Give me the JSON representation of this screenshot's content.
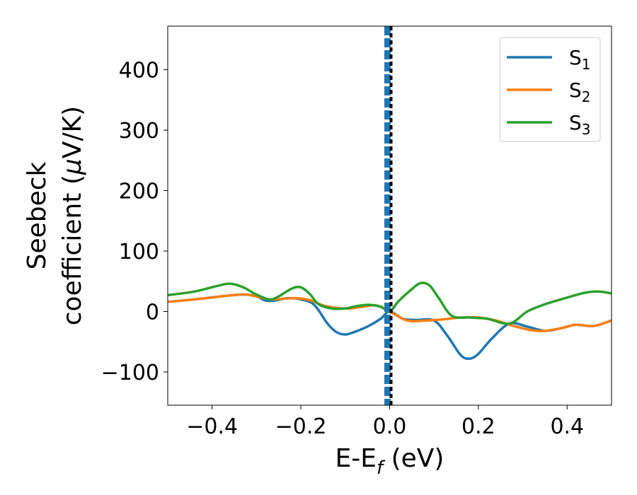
{
  "chart_data": {
    "type": "line",
    "xlabel": {
      "main": "E-E",
      "sub": "f",
      "unit": " (eV)"
    },
    "ylabel": {
      "line1": "Seebeck",
      "line2": "coefficient  (",
      "mu": "μ",
      "line2_end": "V/K)"
    },
    "xlim": [
      -0.5,
      0.5
    ],
    "ylim": [
      -155,
      472
    ],
    "x_ticks": [
      -0.4,
      -0.2,
      0.0,
      0.2,
      0.4
    ],
    "x_tick_labels": [
      "−0.4",
      "−0.2",
      "0.0",
      "0.2",
      "0.4"
    ],
    "y_ticks": [
      -100,
      0,
      100,
      200,
      300,
      400
    ],
    "y_tick_labels": [
      "−100",
      "0",
      "100",
      "200",
      "300",
      "400"
    ],
    "grid": false,
    "legend_position": "top-right",
    "fermi_marker": {
      "x": 0.0,
      "colors": [
        "#1f77b4",
        "#000000"
      ]
    },
    "series": [
      {
        "name": "S",
        "sub": "1",
        "color": "#1f77b4",
        "x": [
          -0.5,
          -0.44,
          -0.38,
          -0.33,
          -0.3,
          -0.28,
          -0.26,
          -0.23,
          -0.2,
          -0.17,
          -0.14,
          -0.12,
          -0.1,
          -0.08,
          -0.05,
          -0.02,
          0.0,
          0.03,
          0.06,
          0.1,
          0.13,
          0.16,
          0.18,
          0.2,
          0.23,
          0.27,
          0.31,
          0.35,
          0.39,
          0.42,
          0.46,
          0.5
        ],
        "y": [
          16,
          20,
          25,
          28,
          25,
          18,
          18,
          22,
          20,
          11,
          -20,
          -34,
          -38,
          -34,
          -25,
          -12,
          0,
          -12,
          -14,
          -15,
          -40,
          -72,
          -78,
          -70,
          -45,
          -20,
          -25,
          -32,
          -27,
          -22,
          -24,
          -15
        ]
      },
      {
        "name": "S",
        "sub": "2",
        "color": "#ff7f0e",
        "x": [
          -0.5,
          -0.44,
          -0.38,
          -0.33,
          -0.3,
          -0.27,
          -0.24,
          -0.21,
          -0.18,
          -0.15,
          -0.12,
          -0.09,
          -0.06,
          -0.03,
          0.0,
          0.04,
          0.08,
          0.12,
          0.16,
          0.2,
          0.24,
          0.28,
          0.32,
          0.35,
          0.39,
          0.42,
          0.46,
          0.5
        ],
        "y": [
          16,
          20,
          25,
          28,
          25,
          20,
          21,
          22,
          19,
          10,
          6,
          5,
          8,
          10,
          0,
          -15,
          -15,
          -13,
          -10,
          -10,
          -15,
          -24,
          -31,
          -32,
          -27,
          -22,
          -24,
          -15
        ]
      },
      {
        "name": "S",
        "sub": "3",
        "color": "#2ca02c",
        "x": [
          -0.5,
          -0.44,
          -0.39,
          -0.36,
          -0.33,
          -0.3,
          -0.27,
          -0.25,
          -0.22,
          -0.2,
          -0.18,
          -0.16,
          -0.13,
          -0.1,
          -0.08,
          -0.05,
          -0.02,
          0.0,
          0.02,
          0.05,
          0.07,
          0.09,
          0.11,
          0.14,
          0.18,
          0.22,
          0.27,
          0.31,
          0.35,
          0.4,
          0.44,
          0.47,
          0.5
        ],
        "y": [
          27,
          33,
          42,
          46,
          40,
          28,
          20,
          25,
          38,
          40,
          29,
          12,
          5,
          5,
          8,
          11,
          8,
          0,
          17,
          37,
          47,
          43,
          23,
          -7,
          -10,
          -12,
          -20,
          0,
          12,
          23,
          31,
          33,
          30
        ]
      }
    ]
  }
}
